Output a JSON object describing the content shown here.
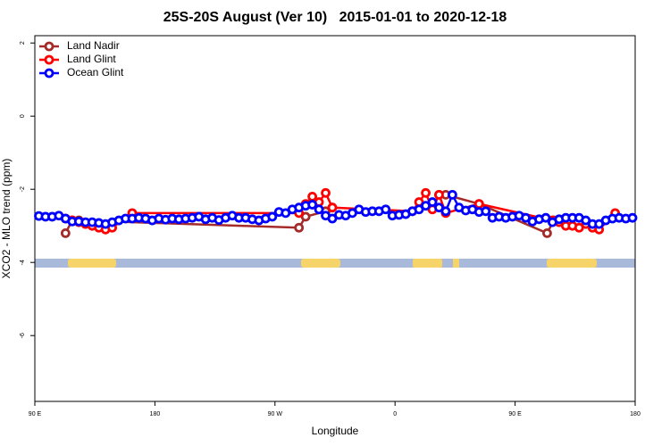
{
  "chart_data": {
    "type": "line",
    "title": "25S-20S August (Ver 10)   2015-01-01 to 2020-12-18",
    "x_label": "Longitude",
    "y_label": "XCO2 - MLO trend (ppm)",
    "xlim": [
      90,
      540
    ],
    "xticks": [
      {
        "value": 90,
        "label": "90 E"
      },
      {
        "value": 180,
        "label": "180"
      },
      {
        "value": 270,
        "label": "90 W"
      },
      {
        "value": 360,
        "label": "0"
      },
      {
        "value": 450,
        "label": "90 E"
      },
      {
        "value": 540,
        "label": "180"
      }
    ],
    "ylim": [
      -7.8,
      2.2
    ],
    "yticks": [
      2,
      0,
      -2,
      -4,
      -6
    ],
    "legend": "top-left",
    "series": [
      {
        "name": "Land Nadir",
        "color": "#a52a2a",
        "x": [
          113,
          118,
          123,
          288,
          293,
          308,
          313,
          383,
          393,
          398,
          423,
          474,
          479
        ],
        "values": [
          -3.2,
          -2.85,
          -2.85,
          -3.05,
          -2.75,
          -2.6,
          -2.5,
          null,
          -2.15,
          -2.15,
          -2.4,
          -3.2,
          -2.85
        ]
      },
      {
        "name": "Land Glint",
        "color": "#ff0000",
        "x": [
          113,
          118,
          123,
          128,
          133,
          138,
          143,
          148,
          163,
          288,
          293,
          298,
          303,
          308,
          313,
          373,
          378,
          383,
          388,
          393,
          398,
          423,
          478,
          483,
          488,
          493,
          498,
          503,
          508,
          513,
          525
        ],
        "values": [
          -2.8,
          -2.85,
          -2.9,
          -2.95,
          -3.0,
          -3.05,
          -3.1,
          -3.05,
          -2.65,
          -2.65,
          -2.4,
          -2.2,
          -2.35,
          -2.1,
          -2.5,
          -2.6,
          -2.35,
          -2.1,
          -2.55,
          -2.15,
          -2.65,
          -2.4,
          -2.85,
          -2.9,
          -3.0,
          -3.0,
          -3.05,
          -2.95,
          -3.05,
          -3.1,
          -2.65
        ]
      },
      {
        "name": "Ocean Glint",
        "color": "#0000ff",
        "x": [
          93,
          98,
          103,
          108,
          113,
          118,
          123,
          128,
          133,
          138,
          143,
          148,
          153,
          158,
          163,
          168,
          173,
          178,
          183,
          188,
          193,
          198,
          203,
          208,
          213,
          218,
          223,
          228,
          233,
          238,
          243,
          248,
          253,
          258,
          263,
          268,
          273,
          278,
          283,
          288,
          293,
          298,
          303,
          308,
          313,
          318,
          323,
          328,
          333,
          338,
          343,
          348,
          353,
          358,
          363,
          368,
          373,
          378,
          383,
          388,
          393,
          398,
          403,
          408,
          413,
          418,
          423,
          428,
          433,
          438,
          443,
          448,
          453,
          458,
          463,
          468,
          473,
          478,
          483,
          488,
          493,
          498,
          503,
          508,
          513,
          518,
          523,
          528,
          533,
          538
        ],
        "values": [
          -2.73,
          -2.75,
          -2.75,
          -2.72,
          -2.8,
          -2.88,
          -2.88,
          -2.9,
          -2.9,
          -2.92,
          -2.95,
          -2.9,
          -2.85,
          -2.8,
          -2.8,
          -2.78,
          -2.8,
          -2.85,
          -2.8,
          -2.83,
          -2.8,
          -2.82,
          -2.8,
          -2.78,
          -2.75,
          -2.82,
          -2.78,
          -2.84,
          -2.78,
          -2.72,
          -2.78,
          -2.78,
          -2.82,
          -2.85,
          -2.8,
          -2.75,
          -2.62,
          -2.65,
          -2.55,
          -2.5,
          -2.45,
          -2.42,
          -2.55,
          -2.72,
          -2.8,
          -2.7,
          -2.72,
          -2.65,
          -2.55,
          -2.62,
          -2.6,
          -2.6,
          -2.55,
          -2.72,
          -2.7,
          -2.68,
          -2.6,
          -2.55,
          -2.45,
          -2.35,
          -2.5,
          -2.6,
          -2.15,
          -2.5,
          -2.58,
          -2.55,
          -2.62,
          -2.6,
          -2.78,
          -2.75,
          -2.78,
          -2.75,
          -2.72,
          -2.78,
          -2.88,
          -2.82,
          -2.78,
          -2.9,
          -2.82,
          -2.78,
          -2.78,
          -2.78,
          -2.85,
          -2.95,
          -2.95,
          -2.85,
          -2.8,
          -2.78,
          -2.8,
          -2.78
        ]
      }
    ]
  }
}
